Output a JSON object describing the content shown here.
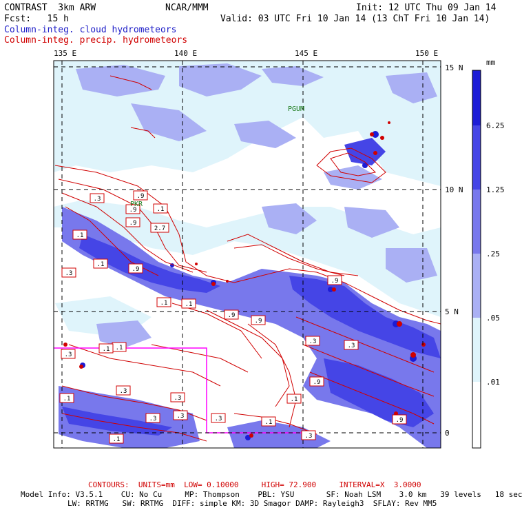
{
  "header": {
    "model": "CONTRAST  3km ARW",
    "center": "NCAR/MMM",
    "init": "Init: 12 UTC Thu 09 Jan 14",
    "fcst": "Fcst:   15 h",
    "valid": "Valid: 03 UTC Fri 10 Jan 14 (13 ChT Fri 10 Jan 14)",
    "line_cloud": "Column-integ. cloud hydrometeors",
    "line_precip": "Column-integ. precip. hydrometeors"
  },
  "map": {
    "lon_labels": [
      "135 E",
      "140 E",
      "145 E",
      "150 E"
    ],
    "lat_labels": [
      "15 N",
      "10 N",
      "5 N",
      "0"
    ],
    "place_labels": [
      "PGUM",
      "PKR"
    ]
  },
  "colorbar": {
    "unit": "mm",
    "labels": [
      "6.25",
      "1.25",
      ".25",
      ".05",
      ".01"
    ],
    "colors": [
      "#1c1cd6",
      "#4545e6",
      "#7878ec",
      "#aab0f4",
      "#dff4fb",
      "#ffffff"
    ]
  },
  "contour_labels": [
    ".3",
    ".9",
    ".1",
    ".9",
    ".9",
    "2.7",
    ".1",
    ".1",
    ".3",
    ".9",
    ".9",
    ".9",
    ".1",
    ".9",
    ".3",
    ".1",
    ".3",
    ".9",
    ".3",
    ".1",
    ".1",
    ".3",
    ".3",
    ".3",
    ".1",
    ".3",
    ".1",
    ".9",
    ".1",
    ".3",
    ".1",
    ".3"
  ],
  "footer": {
    "contours": "CONTOURS:  UNITS=mm  LOW= 0.10000     HIGH= 72.900     INTERVAL=X  3.0000",
    "model_info_1": "Model Info: V3.5.1    CU: No Cu     MP: Thompson    PBL: YSU       SF: Noah LSM    3.0 km   39 levels   18 sec",
    "model_info_2": "LW: RRTMG   SW: RRTMG  DIFF: simple KM: 3D Smagor DAMP: Rayleigh3  SFLAY: Rev MM5"
  }
}
